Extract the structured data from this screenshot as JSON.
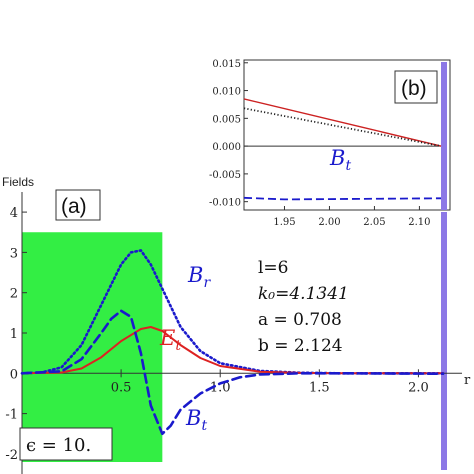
{
  "chart_data": [
    {
      "panel": "(a)",
      "type": "line",
      "ylabel": "Fields",
      "xlabel": "r",
      "xlim": [
        0,
        2.124
      ],
      "ylim": [
        -2.3,
        4.3
      ],
      "xticks": [
        "0.5",
        "1.0",
        "1.5",
        "2.0"
      ],
      "yticks": [
        "-2",
        "-1",
        "0",
        "1",
        "2",
        "3",
        "4"
      ],
      "region_label": "ϵ = 10.",
      "region_color": "#33ee44",
      "region_extent": [
        0,
        0.708
      ],
      "boundary_color": "#8c78e6",
      "boundary_r": 2.124,
      "annotations": [
        "l=6",
        "k₀=4.1341",
        "a = 0.708",
        "b = 2.124"
      ],
      "series": [
        {
          "name": "B_r",
          "label_main": "B",
          "label_sub": "r",
          "color": "#1a1acc",
          "style": "dotted",
          "x": [
            0,
            0.1,
            0.2,
            0.3,
            0.4,
            0.5,
            0.55,
            0.6,
            0.65,
            0.708,
            0.8,
            0.9,
            1.0,
            1.2,
            1.4,
            1.6,
            2.124
          ],
          "y": [
            0,
            0.02,
            0.15,
            0.7,
            1.7,
            2.7,
            3.0,
            3.05,
            2.7,
            2.1,
            1.15,
            0.55,
            0.25,
            0.06,
            0.015,
            0,
            0
          ]
        },
        {
          "name": "E_t",
          "label_main": "E",
          "label_sub": "t",
          "color": "#dd2222",
          "style": "solid",
          "x": [
            0,
            0.2,
            0.3,
            0.4,
            0.5,
            0.6,
            0.65,
            0.708,
            0.8,
            0.9,
            1.0,
            1.2,
            1.4,
            1.6,
            2.124
          ],
          "y": [
            0,
            0.02,
            0.12,
            0.4,
            0.8,
            1.1,
            1.15,
            1.05,
            0.7,
            0.38,
            0.18,
            0.04,
            0.01,
            0,
            0
          ]
        },
        {
          "name": "B_t",
          "label_main": "B",
          "label_sub": "t",
          "color": "#1a1acc",
          "style": "dashed",
          "x": [
            0,
            0.2,
            0.3,
            0.4,
            0.45,
            0.5,
            0.55,
            0.6,
            0.65,
            0.708,
            0.75,
            0.8,
            0.9,
            1.0,
            1.1,
            1.2,
            1.4,
            1.6,
            2.124
          ],
          "y": [
            0,
            0.05,
            0.35,
            1.0,
            1.35,
            1.55,
            1.4,
            0.5,
            -0.8,
            -1.5,
            -1.3,
            -0.9,
            -0.5,
            -0.25,
            -0.1,
            -0.03,
            0,
            0,
            -0.01
          ]
        }
      ]
    },
    {
      "panel": "(b)",
      "type": "line",
      "xlim": [
        1.905,
        2.124
      ],
      "ylim": [
        -0.0115,
        0.0155
      ],
      "xticks": [
        "1.95",
        "2.00",
        "2.05",
        "2.10"
      ],
      "yticks": [
        "0.015",
        "0.010",
        "0.005",
        "0.000",
        "-0.005",
        "-0.010"
      ],
      "boundary_color": "#8c78e6",
      "boundary_r": 2.124,
      "series": [
        {
          "name": "E_t",
          "color": "#cc2222",
          "style": "solid",
          "x": [
            1.905,
            2.124
          ],
          "y": [
            0.0085,
            0.0
          ]
        },
        {
          "name": "B_r",
          "color": "#222222",
          "style": "dotted",
          "x": [
            1.905,
            2.124
          ],
          "y": [
            0.0068,
            0.0
          ]
        },
        {
          "name": "B_t",
          "label_main": "B",
          "label_sub": "t",
          "color": "#1a1acc",
          "style": "dashed",
          "x": [
            1.905,
            1.95,
            2.124
          ],
          "y": [
            -0.0093,
            -0.0096,
            -0.0094
          ]
        }
      ]
    }
  ]
}
